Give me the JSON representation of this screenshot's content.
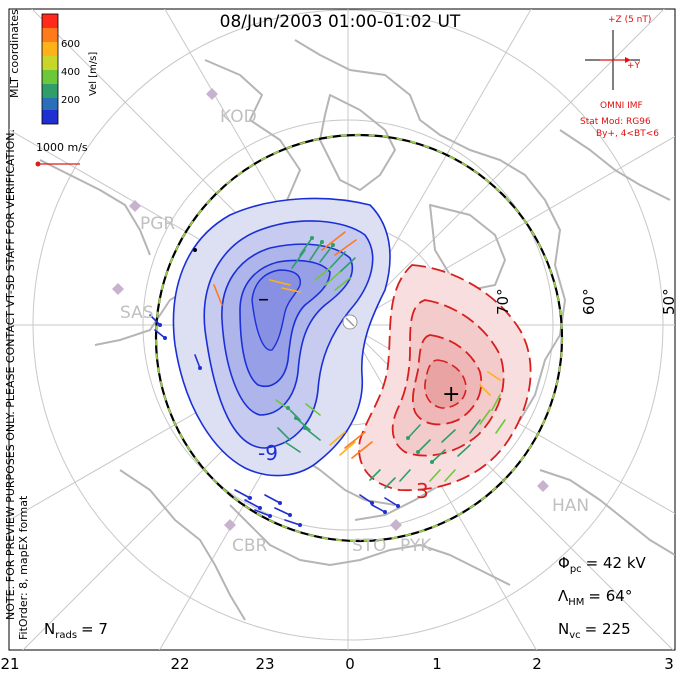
{
  "header": {
    "title": "08/Jun/2003 01:00-01:02 UT"
  },
  "colorbar": {
    "label": "Vel [m/s]",
    "ticks": [
      "600",
      "400",
      "200"
    ],
    "colors": [
      "#ff2a1a",
      "#ff7a1a",
      "#ffb11a",
      "#c8d62a",
      "#6cc83a",
      "#2f9e6a",
      "#2b6fb8",
      "#1f2fd0"
    ]
  },
  "coordinates_label": "MLT coordinates",
  "reference_vector": {
    "label": "1000 m/s"
  },
  "imf": {
    "z_label": "+Z (5 nT)",
    "y_label": "+Y",
    "source": "OMNI IMF",
    "model": "Stat Mod: RG96",
    "condition": "By+, 4<BT<6"
  },
  "side_note": {
    "line1": "NOTE: FOR PREVIEW PURPOSES ONLY. PLEASE CONTACT VT-SD STAFF FOR VERIFICATION.",
    "line2": "FitOrder: 8, mapEX format"
  },
  "stations": [
    "KOD",
    "PGR",
    "SAS",
    "CBR",
    "STO",
    "PYK",
    "HAN"
  ],
  "latitude_labels": [
    "70°",
    "60°",
    "50°"
  ],
  "contour_labels": {
    "negative": "-9",
    "positive": "3",
    "min_marker": "–",
    "max_marker": "+"
  },
  "stats": {
    "nrads_sym": "N",
    "nrads_sub": "rads",
    "nrads_val": "= 7",
    "phi_sym": "Φ",
    "phi_sub": "pc",
    "phi_val": "= 42 kV",
    "lambda_sym": "Λ",
    "lambda_sub": "HM",
    "lambda_val": "= 64°",
    "nvc_sym": "N",
    "nvc_sub": "vc",
    "nvc_val": "= 225"
  },
  "mlt_axis": [
    "21",
    "22",
    "23",
    "0",
    "1",
    "2",
    "3"
  ],
  "colors": {
    "negative_cell": "#1b2fd6",
    "positive_cell": "#d81f1f",
    "grid": "#c8c8c8",
    "coast": "#b5b5b5",
    "imf": "#e01010"
  }
}
